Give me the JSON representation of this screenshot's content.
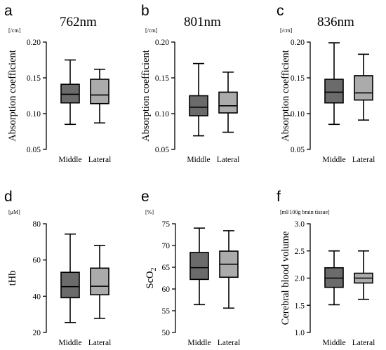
{
  "chart_data": [
    {
      "type": "box",
      "panel": "a",
      "title": "762nm",
      "unit": "[/cm]",
      "ylabel": "Absorption coefficient",
      "ylim": [
        0.05,
        0.2
      ],
      "yticks": [
        "0.05",
        "0.10",
        "0.15",
        "0.20"
      ],
      "yticks_values": [
        0.05,
        0.1,
        0.15,
        0.2
      ],
      "categories": [
        "Middle",
        "Lateral"
      ],
      "boxes": [
        {
          "category": "Middle",
          "min": 0.085,
          "q1": 0.115,
          "median": 0.127,
          "q3": 0.141,
          "max": 0.175,
          "color": "#6b6b6b"
        },
        {
          "category": "Lateral",
          "min": 0.087,
          "q1": 0.114,
          "median": 0.126,
          "q3": 0.148,
          "max": 0.162,
          "color": "#ababab"
        }
      ]
    },
    {
      "type": "box",
      "panel": "b",
      "title": "801nm",
      "unit": "[/cm]",
      "ylabel": "Absorption coefficient",
      "ylim": [
        0.05,
        0.2
      ],
      "yticks": [
        "0.05",
        "0.10",
        "0.15",
        "0.20"
      ],
      "yticks_values": [
        0.05,
        0.1,
        0.15,
        0.2
      ],
      "categories": [
        "Middle",
        "Lateral"
      ],
      "boxes": [
        {
          "category": "Middle",
          "min": 0.069,
          "q1": 0.097,
          "median": 0.109,
          "q3": 0.125,
          "max": 0.17,
          "color": "#6b6b6b"
        },
        {
          "category": "Lateral",
          "min": 0.074,
          "q1": 0.101,
          "median": 0.111,
          "q3": 0.13,
          "max": 0.158,
          "color": "#ababab"
        }
      ]
    },
    {
      "type": "box",
      "panel": "c",
      "title": "836nm",
      "unit": "[/cm]",
      "ylabel": "Absorption coefficient",
      "ylim": [
        0.05,
        0.2
      ],
      "yticks": [
        "0.05",
        "0.10",
        "0.15",
        "0.20"
      ],
      "yticks_values": [
        0.05,
        0.1,
        0.15,
        0.2
      ],
      "categories": [
        "Middle",
        "Lateral"
      ],
      "boxes": [
        {
          "category": "Middle",
          "min": 0.085,
          "q1": 0.115,
          "median": 0.13,
          "q3": 0.148,
          "max": 0.199,
          "color": "#6b6b6b"
        },
        {
          "category": "Lateral",
          "min": 0.091,
          "q1": 0.119,
          "median": 0.129,
          "q3": 0.153,
          "max": 0.183,
          "color": "#ababab"
        }
      ]
    },
    {
      "type": "box",
      "panel": "d",
      "title": "",
      "unit": "[μM]",
      "ylabel": "tHb",
      "ylim": [
        20,
        80
      ],
      "yticks": [
        "20",
        "40",
        "60",
        "80"
      ],
      "yticks_values": [
        20,
        40,
        60,
        80
      ],
      "categories": [
        "Middle",
        "Lateral"
      ],
      "boxes": [
        {
          "category": "Middle",
          "min": 25.5,
          "q1": 39.2,
          "median": 45.3,
          "q3": 53.2,
          "max": 74.3,
          "color": "#6b6b6b"
        },
        {
          "category": "Lateral",
          "min": 27.8,
          "q1": 40.8,
          "median": 45.5,
          "q3": 55.5,
          "max": 68.0,
          "color": "#ababab"
        }
      ]
    },
    {
      "type": "box",
      "panel": "e",
      "title": "",
      "unit": "[%]",
      "ylabel": "ScO",
      "ylabel_sub": "2",
      "ylim": [
        50,
        75
      ],
      "yticks": [
        "50",
        "55",
        "60",
        "65",
        "70",
        "75"
      ],
      "yticks_values": [
        50,
        55,
        60,
        65,
        70,
        75
      ],
      "categories": [
        "Middle",
        "Lateral"
      ],
      "boxes": [
        {
          "category": "Middle",
          "min": 56.4,
          "q1": 62.2,
          "median": 64.9,
          "q3": 68.4,
          "max": 74.0,
          "color": "#6b6b6b"
        },
        {
          "category": "Lateral",
          "min": 55.6,
          "q1": 62.7,
          "median": 65.7,
          "q3": 68.7,
          "max": 73.4,
          "color": "#ababab"
        }
      ]
    },
    {
      "type": "box",
      "panel": "f",
      "title": "",
      "unit": "[ml/100g brain tissue]",
      "ylabel": "Cerebral blood volume",
      "ylim": [
        1.0,
        3.0
      ],
      "yticks": [
        "1.0",
        "1.5",
        "2.0",
        "2.5",
        "3.0"
      ],
      "yticks_values": [
        1.0,
        1.5,
        2.0,
        2.5,
        3.0
      ],
      "categories": [
        "Middle",
        "Lateral"
      ],
      "boxes": [
        {
          "category": "Middle",
          "min": 1.51,
          "q1": 1.83,
          "median": 2.0,
          "q3": 2.19,
          "max": 2.5,
          "color": "#6b6b6b"
        },
        {
          "category": "Lateral",
          "min": 1.61,
          "q1": 1.91,
          "median": 2.0,
          "q3": 2.09,
          "max": 2.5,
          "color": "#ababab"
        }
      ]
    }
  ]
}
